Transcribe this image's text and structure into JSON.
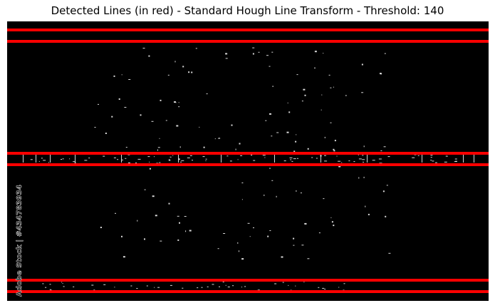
{
  "title": "Detected Lines (in red) - Standard Hough Line Transform - Threshold: 140",
  "watermark": "Adobe Stock | #434783934",
  "colors": {
    "background": "#000000",
    "detected_line": "#ff0000",
    "edges": "#d8d8d8"
  },
  "image_content": {
    "description_type": "edge-detection output with detected horizontal lines",
    "detected_line_count": 6,
    "line_orientation": "horizontal"
  }
}
